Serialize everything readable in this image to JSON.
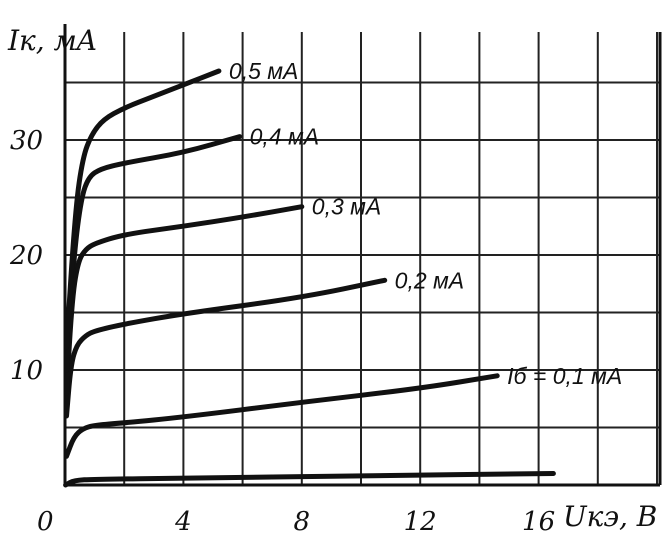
{
  "chart_data": {
    "type": "line",
    "title": "",
    "ylabel": "Iк, мA",
    "xlabel": "Uкэ, B",
    "xlim": [
      0,
      18.5
    ],
    "ylim": [
      0,
      38
    ],
    "x_ticks": [
      "0",
      "4",
      "8",
      "12",
      "16"
    ],
    "x_tick_values": [
      0,
      4,
      8,
      12,
      16
    ],
    "y_ticks": [
      "10",
      "20",
      "30"
    ],
    "y_tick_values": [
      10,
      20,
      30
    ],
    "grid": true,
    "series": [
      {
        "label": "",
        "points": [
          [
            0.02,
            0.0
          ],
          [
            0.3,
            0.4
          ],
          [
            1,
            0.5
          ],
          [
            4,
            0.6
          ],
          [
            10,
            0.8
          ],
          [
            16.5,
            1.0
          ]
        ]
      },
      {
        "label": "Iб = 0,1 мA",
        "points": [
          [
            0.05,
            2.5
          ],
          [
            0.3,
            4.2
          ],
          [
            0.6,
            4.9
          ],
          [
            1,
            5.2
          ],
          [
            2,
            5.4
          ],
          [
            4,
            5.9
          ],
          [
            8,
            7.2
          ],
          [
            12,
            8.4
          ],
          [
            14.6,
            9.5
          ]
        ]
      },
      {
        "label": "0,2 мA",
        "points": [
          [
            0.05,
            6
          ],
          [
            0.2,
            10.5
          ],
          [
            0.4,
            12.2
          ],
          [
            0.7,
            13.0
          ],
          [
            1,
            13.4
          ],
          [
            2,
            14.0
          ],
          [
            4,
            14.9
          ],
          [
            8,
            16.3
          ],
          [
            10.8,
            17.8
          ]
        ]
      },
      {
        "label": "0,3 мA",
        "points": [
          [
            0.05,
            8
          ],
          [
            0.25,
            16.5
          ],
          [
            0.45,
            19.5
          ],
          [
            0.7,
            20.5
          ],
          [
            1,
            21.0
          ],
          [
            2,
            21.8
          ],
          [
            4,
            22.5
          ],
          [
            6,
            23.3
          ],
          [
            8,
            24.2
          ]
        ]
      },
      {
        "label": "0,4 мA",
        "points": [
          [
            0.05,
            10
          ],
          [
            0.3,
            20
          ],
          [
            0.55,
            25
          ],
          [
            0.8,
            26.8
          ],
          [
            1.2,
            27.5
          ],
          [
            2,
            28.0
          ],
          [
            4,
            28.9
          ],
          [
            5.9,
            30.3
          ]
        ]
      },
      {
        "label": "0,5 мA",
        "points": [
          [
            0.05,
            12
          ],
          [
            0.35,
            24
          ],
          [
            0.6,
            28.5
          ],
          [
            0.9,
            30.5
          ],
          [
            1.3,
            31.8
          ],
          [
            2,
            32.8
          ],
          [
            3,
            33.8
          ],
          [
            4,
            34.8
          ],
          [
            5.2,
            36.0
          ]
        ]
      }
    ]
  }
}
